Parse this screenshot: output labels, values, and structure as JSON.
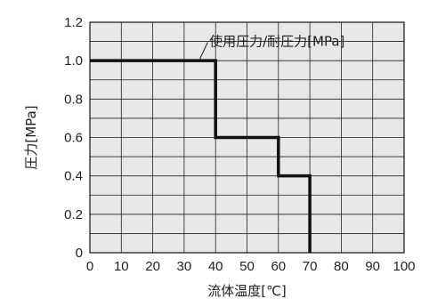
{
  "chart_data": {
    "type": "line",
    "xlabel": "流体温度[℃]",
    "ylabel": "圧力[MPa]",
    "xlim": [
      0,
      100
    ],
    "ylim": [
      0,
      1.2
    ],
    "x_ticks": [
      "0",
      "10",
      "20",
      "30",
      "40",
      "50",
      "60",
      "70",
      "80",
      "90",
      "100"
    ],
    "y_ticks": [
      "0",
      "0.2",
      "0.4",
      "0.6",
      "0.8",
      "1.0",
      "1.2"
    ],
    "grid": true,
    "background_color": "#e8e8e8",
    "line_color": "#111111",
    "annotation": "使用圧力/耐圧力[MPa]",
    "series": [
      {
        "style": "step",
        "x": [
          0,
          40,
          40,
          60,
          60,
          70,
          70
        ],
        "y": [
          1.0,
          1.0,
          0.6,
          0.6,
          0.4,
          0.4,
          0.0
        ]
      }
    ]
  }
}
